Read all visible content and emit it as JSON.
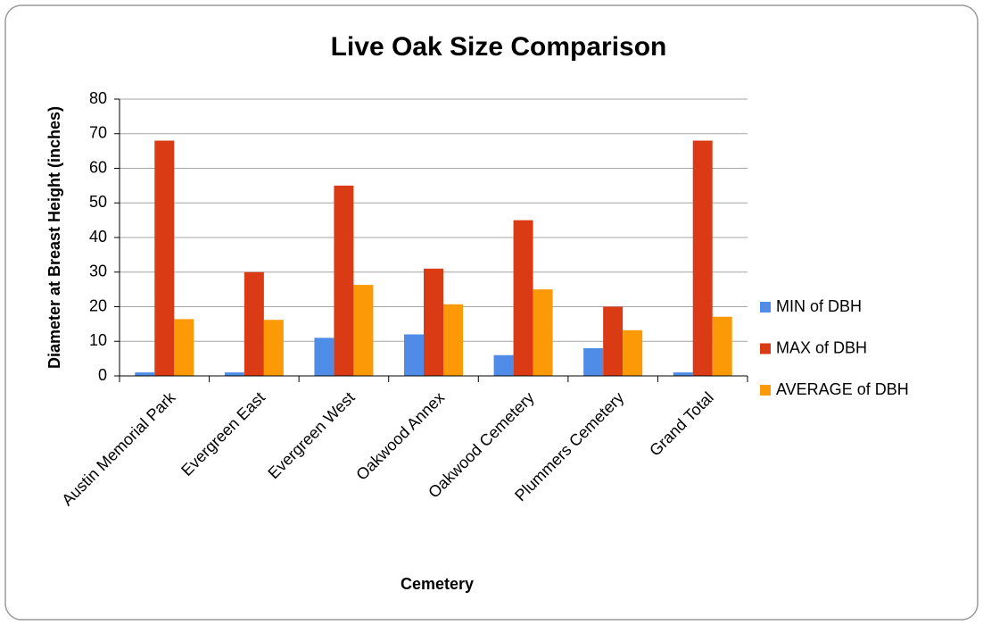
{
  "chart_data": {
    "type": "bar",
    "title": "Live Oak Size Comparison",
    "x_label": "Cemetery",
    "y_label": "Diameter at Breast Height (inches)",
    "categories": [
      "Austin Memorial Park",
      "Evergreen East",
      "Evergreen West",
      "Oakwood Annex",
      "Oakwood Cemetery",
      "Plummers Cemetery",
      "Grand Total"
    ],
    "series": [
      {
        "name": "MIN of DBH",
        "color": "#4f8ce8",
        "values": [
          1,
          1,
          11,
          12,
          6,
          8,
          1
        ]
      },
      {
        "name": "MAX of DBH",
        "color": "#da3b15",
        "values": [
          68,
          30,
          55,
          31,
          45,
          20,
          68
        ]
      },
      {
        "name": "AVERAGE of DBH",
        "color": "#fb9a06",
        "values": [
          16.4,
          16.2,
          26.3,
          20.7,
          25,
          13.2,
          17.1
        ]
      }
    ],
    "ylim": [
      0,
      80
    ],
    "yticks": [
      0,
      10,
      20,
      30,
      40,
      50,
      60,
      70,
      80
    ],
    "grid": true,
    "legend": "right"
  }
}
